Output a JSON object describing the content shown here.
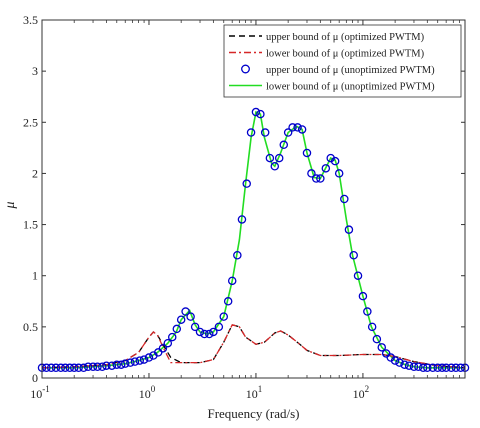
{
  "chart_data": {
    "type": "line",
    "title": "",
    "xlabel": "Frequency (rad/s)",
    "ylabel": "μ",
    "xscale": "log",
    "xlim": [
      0.1,
      900
    ],
    "ylim": [
      0,
      3.5
    ],
    "grid": false,
    "legend_position": "top-right",
    "x_ticks": [
      {
        "value": 0.1,
        "base": "10",
        "exp": "-1"
      },
      {
        "value": 1,
        "base": "10",
        "exp": "0"
      },
      {
        "value": 10,
        "base": "10",
        "exp": "1"
      },
      {
        "value": 100,
        "base": "10",
        "exp": "2"
      }
    ],
    "y_ticks": [
      {
        "value": 0,
        "label": "0"
      },
      {
        "value": 0.5,
        "label": "0.5"
      },
      {
        "value": 1,
        "label": "1"
      },
      {
        "value": 1.5,
        "label": "1.5"
      },
      {
        "value": 2,
        "label": "2"
      },
      {
        "value": 2.5,
        "label": "2.5"
      },
      {
        "value": 3,
        "label": "3"
      },
      {
        "value": 3.5,
        "label": "3.5"
      }
    ],
    "series": [
      {
        "name": "upper bound of μ (optimized PWTM)",
        "style": "dashed",
        "color": "#000000",
        "x": [
          0.1,
          0.2,
          0.4,
          0.6,
          0.8,
          1.0,
          1.1,
          1.2,
          1.4,
          1.6,
          2.0,
          3.0,
          4.0,
          5.0,
          6.0,
          7.0,
          8.0,
          10,
          12,
          15,
          17,
          20,
          25,
          30,
          40,
          60,
          100,
          150,
          200,
          300,
          500,
          900
        ],
        "y": [
          0.1,
          0.11,
          0.13,
          0.17,
          0.25,
          0.4,
          0.45,
          0.42,
          0.3,
          0.2,
          0.15,
          0.15,
          0.18,
          0.35,
          0.52,
          0.5,
          0.4,
          0.33,
          0.35,
          0.44,
          0.46,
          0.42,
          0.34,
          0.27,
          0.22,
          0.22,
          0.23,
          0.23,
          0.21,
          0.16,
          0.12,
          0.1
        ]
      },
      {
        "name": "lower bound of μ (optimized PWTM)",
        "style": "dash-dot",
        "color": "#d62728",
        "x": [
          0.1,
          0.2,
          0.4,
          0.6,
          0.8,
          1.0,
          1.1,
          1.2,
          1.4,
          1.6,
          2.0,
          3.0,
          4.0,
          5.0,
          6.0,
          7.0,
          8.0,
          10,
          12,
          15,
          17,
          20,
          25,
          30,
          40,
          60,
          100,
          150,
          200,
          300,
          500,
          900
        ],
        "y": [
          0.1,
          0.11,
          0.13,
          0.17,
          0.25,
          0.4,
          0.45,
          0.42,
          0.27,
          0.15,
          0.15,
          0.15,
          0.18,
          0.35,
          0.52,
          0.5,
          0.4,
          0.33,
          0.35,
          0.44,
          0.46,
          0.42,
          0.34,
          0.27,
          0.22,
          0.22,
          0.23,
          0.23,
          0.21,
          0.16,
          0.12,
          0.1
        ]
      },
      {
        "name": "upper bound of μ (unoptimized PWTM)",
        "style": "markers",
        "color": "#0000cc",
        "x": [
          0.1,
          0.11,
          0.122,
          0.135,
          0.15,
          0.165,
          0.182,
          0.2,
          0.22,
          0.245,
          0.27,
          0.3,
          0.33,
          0.366,
          0.4,
          0.45,
          0.5,
          0.55,
          0.6,
          0.67,
          0.74,
          0.82,
          0.9,
          1.0,
          1.1,
          1.22,
          1.35,
          1.5,
          1.65,
          1.82,
          2.0,
          2.2,
          2.45,
          2.7,
          3.0,
          3.3,
          3.66,
          4.0,
          4.5,
          5.0,
          5.5,
          6.0,
          6.7,
          7.4,
          8.2,
          9.0,
          10,
          11,
          12.2,
          13.5,
          15,
          16.5,
          18.2,
          20,
          22,
          24.5,
          27,
          30,
          33,
          36.6,
          40,
          45,
          50,
          55,
          60,
          67,
          74,
          82,
          90,
          100,
          110,
          122,
          135,
          150,
          165,
          182,
          200,
          220,
          245,
          270,
          300,
          330,
          366,
          400,
          450,
          500,
          550,
          600,
          670,
          740,
          820,
          900
        ],
        "y": [
          0.1,
          0.1,
          0.1,
          0.1,
          0.1,
          0.1,
          0.1,
          0.1,
          0.1,
          0.1,
          0.11,
          0.11,
          0.11,
          0.11,
          0.12,
          0.12,
          0.13,
          0.13,
          0.14,
          0.15,
          0.16,
          0.17,
          0.18,
          0.2,
          0.22,
          0.25,
          0.29,
          0.34,
          0.4,
          0.48,
          0.57,
          0.65,
          0.6,
          0.5,
          0.45,
          0.43,
          0.43,
          0.45,
          0.5,
          0.6,
          0.75,
          0.95,
          1.2,
          1.55,
          1.9,
          2.4,
          2.6,
          2.58,
          2.4,
          2.15,
          2.07,
          2.15,
          2.28,
          2.4,
          2.45,
          2.45,
          2.43,
          2.2,
          2.0,
          1.95,
          1.95,
          2.05,
          2.15,
          2.12,
          2.0,
          1.75,
          1.45,
          1.2,
          1.0,
          0.8,
          0.65,
          0.5,
          0.38,
          0.3,
          0.24,
          0.2,
          0.17,
          0.15,
          0.13,
          0.12,
          0.11,
          0.11,
          0.1,
          0.1,
          0.1,
          0.1,
          0.1,
          0.1,
          0.1,
          0.1,
          0.1,
          0.1
        ]
      },
      {
        "name": "lower bound of μ (unoptimized PWTM)",
        "style": "solid",
        "color": "#22dd22",
        "x": [
          0.1,
          0.15,
          0.2,
          0.3,
          0.4,
          0.5,
          0.6,
          0.8,
          1.0,
          1.2,
          1.5,
          1.8,
          2.0,
          2.4,
          2.7,
          3.0,
          3.5,
          4.0,
          5.0,
          6.0,
          7.0,
          8.0,
          9.0,
          10,
          11,
          12,
          14,
          15,
          17,
          20,
          24,
          27,
          30,
          35,
          40,
          50,
          55,
          60,
          70,
          80,
          100,
          120,
          150,
          200,
          250,
          300,
          400,
          500,
          700,
          900
        ],
        "y": [
          0.1,
          0.1,
          0.1,
          0.11,
          0.12,
          0.13,
          0.14,
          0.17,
          0.2,
          0.25,
          0.34,
          0.45,
          0.57,
          0.66,
          0.52,
          0.45,
          0.43,
          0.45,
          0.6,
          0.95,
          1.35,
          1.9,
          2.35,
          2.6,
          2.58,
          2.35,
          2.1,
          2.07,
          2.2,
          2.4,
          2.46,
          2.43,
          2.2,
          1.96,
          1.95,
          2.15,
          2.13,
          2.0,
          1.55,
          1.2,
          0.8,
          0.5,
          0.3,
          0.17,
          0.13,
          0.11,
          0.1,
          0.1,
          0.1,
          0.1
        ]
      }
    ]
  }
}
